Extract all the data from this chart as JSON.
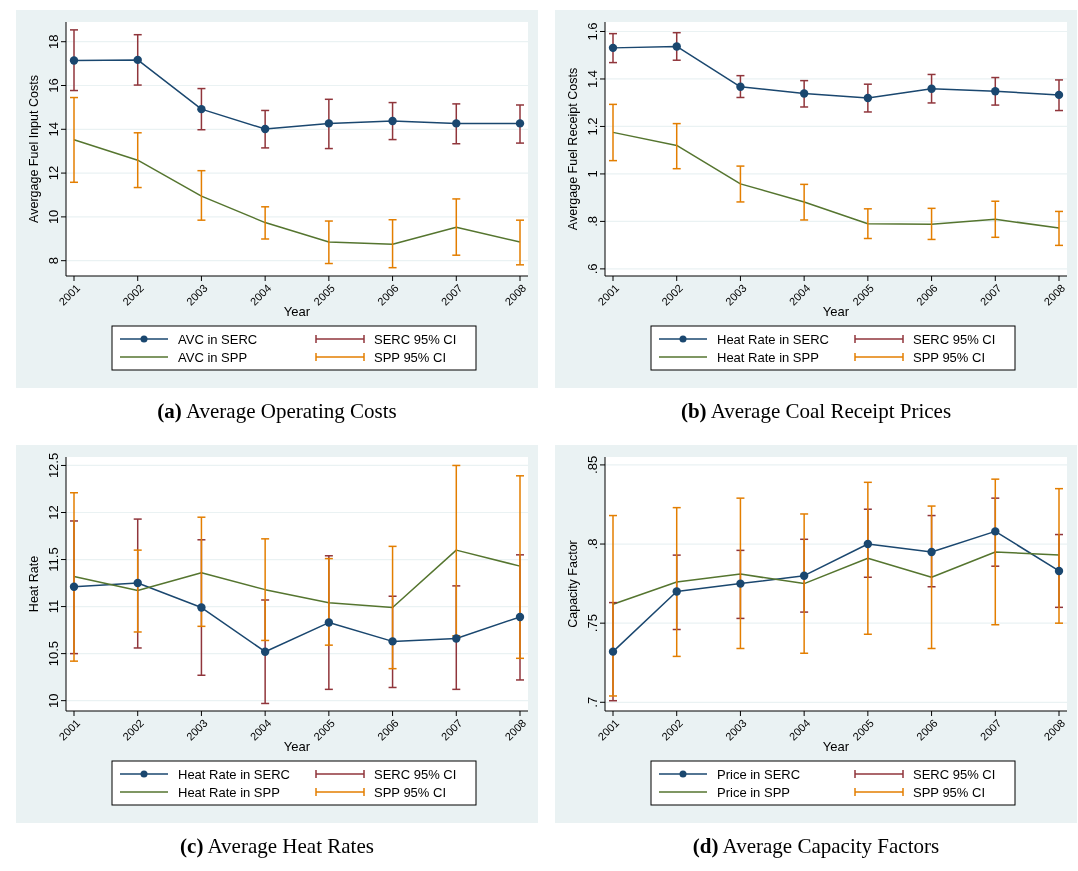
{
  "chart_data": [
    {
      "type": "line",
      "title": "(a) Average Operating Costs",
      "xlabel": "Year",
      "ylabel": "Avergage Fuel Input Costs",
      "categories": [
        "2001",
        "2002",
        "2003",
        "2004",
        "2005",
        "2006",
        "2007",
        "2008"
      ],
      "ylim": [
        7.3,
        18.9
      ],
      "yticks": [
        8,
        10,
        12,
        14,
        16,
        18
      ],
      "grid": "y",
      "legend": "bottom",
      "annotations": [
        "SERC 95% CI",
        "SPP 95% CI"
      ],
      "series": [
        {
          "name": "AVC in SERC",
          "color": "#1a476f",
          "marker": "circle",
          "values": [
            17.14,
            17.17,
            14.92,
            14.01,
            14.27,
            14.38,
            14.27,
            14.27
          ],
          "errors": [
            [
              15.77,
              18.54
            ],
            [
              16.02,
              18.32
            ],
            [
              13.98,
              15.86
            ],
            [
              13.15,
              14.86
            ],
            [
              13.12,
              15.37
            ],
            [
              13.53,
              15.22
            ],
            [
              13.34,
              15.16
            ],
            [
              13.37,
              15.11
            ]
          ]
        },
        {
          "name": "AVC in SPP",
          "color": "#55752f",
          "marker": "none",
          "values": [
            13.52,
            12.59,
            10.95,
            9.74,
            8.85,
            8.75,
            9.53,
            8.85
          ],
          "errors": [
            [
              11.58,
              15.45
            ],
            [
              11.34,
              13.84
            ],
            [
              9.85,
              12.11
            ],
            [
              8.99,
              10.46
            ],
            [
              7.87,
              9.81
            ],
            [
              7.68,
              9.87
            ],
            [
              8.25,
              10.82
            ],
            [
              7.81,
              9.85
            ]
          ]
        }
      ]
    },
    {
      "type": "line",
      "title": "(b) Average Coal Receipt Prices",
      "xlabel": "Year",
      "ylabel": "Avergage Fuel Receipt Costs",
      "categories": [
        "2001",
        "2002",
        "2003",
        "2004",
        "2005",
        "2006",
        "2007",
        "2008"
      ],
      "ylim": [
        0.57,
        1.64
      ],
      "yticks": [
        {
          "value": 0.6,
          "label": ".6"
        },
        {
          "value": 0.8,
          "label": ".8"
        },
        1,
        1.2,
        1.4,
        1.6
      ],
      "grid": "y",
      "legend": "bottom",
      "annotations": [
        "SERC 95% CI",
        "SPP 95% CI"
      ],
      "series": [
        {
          "name": "Heat Rate in SERC",
          "color": "#1a476f",
          "marker": "circle",
          "values": [
            1.531,
            1.537,
            1.367,
            1.339,
            1.32,
            1.359,
            1.348,
            1.333
          ],
          "errors": [
            [
              1.469,
              1.591
            ],
            [
              1.479,
              1.595
            ],
            [
              1.322,
              1.414
            ],
            [
              1.282,
              1.393
            ],
            [
              1.261,
              1.378
            ],
            [
              1.299,
              1.419
            ],
            [
              1.29,
              1.406
            ],
            [
              1.267,
              1.396
            ]
          ]
        },
        {
          "name": "Heat Rate in SPP",
          "color": "#55752f",
          "marker": "none",
          "values": [
            1.175,
            1.12,
            0.958,
            0.882,
            0.79,
            0.788,
            0.809,
            0.772
          ],
          "errors": [
            [
              1.056,
              1.293
            ],
            [
              1.022,
              1.212
            ],
            [
              0.882,
              1.033
            ],
            [
              0.806,
              0.956
            ],
            [
              0.728,
              0.853
            ],
            [
              0.724,
              0.855
            ],
            [
              0.733,
              0.885
            ],
            [
              0.699,
              0.842
            ]
          ]
        }
      ]
    },
    {
      "type": "line",
      "title": "(c) Average Heat Rates",
      "xlabel": "Year",
      "ylabel": "Heat Rate",
      "categories": [
        "2001",
        "2002",
        "2003",
        "2004",
        "2005",
        "2006",
        "2007",
        "2008"
      ],
      "ylim": [
        9.89,
        12.59
      ],
      "yticks": [
        10,
        10.5,
        11,
        11.5,
        12,
        12.5
      ],
      "grid": "y",
      "legend": "bottom",
      "annotations": [
        "SERC 95% CI",
        "SPP 95% CI"
      ],
      "series": [
        {
          "name": "Heat Rate in SERC",
          "color": "#1a476f",
          "marker": "circle",
          "values": [
            11.21,
            11.25,
            10.99,
            10.52,
            10.83,
            10.63,
            10.66,
            10.89
          ],
          "errors": [
            [
              10.5,
              11.91
            ],
            [
              10.56,
              11.93
            ],
            [
              10.27,
              11.71
            ],
            [
              9.97,
              11.07
            ],
            [
              10.12,
              11.54
            ],
            [
              10.14,
              11.11
            ],
            [
              10.12,
              11.22
            ],
            [
              10.22,
              11.55
            ]
          ]
        },
        {
          "name": "Heat Rate in SPP",
          "color": "#55752f",
          "marker": "none",
          "values": [
            11.32,
            11.17,
            11.36,
            11.18,
            11.04,
            10.99,
            11.6,
            11.43
          ],
          "errors": [
            [
              10.42,
              12.21
            ],
            [
              10.73,
              11.6
            ],
            [
              10.79,
              11.95
            ],
            [
              10.64,
              11.72
            ],
            [
              10.59,
              11.51
            ],
            [
              10.34,
              11.64
            ],
            [
              10.69,
              12.5
            ],
            [
              10.45,
              12.39
            ]
          ]
        }
      ]
    },
    {
      "type": "line",
      "title": "(d) Average Capacity Factors",
      "xlabel": "Year",
      "ylabel": "Capacity Factor",
      "categories": [
        "2001",
        "2002",
        "2003",
        "2004",
        "2005",
        "2006",
        "2007",
        "2008"
      ],
      "ylim": [
        0.6945,
        0.855
      ],
      "yticks": [
        {
          "value": 0.7,
          "label": ".7"
        },
        {
          "value": 0.75,
          "label": ".75"
        },
        {
          "value": 0.8,
          "label": ".8"
        },
        {
          "value": 0.85,
          "label": ".85"
        }
      ],
      "grid": "y",
      "legend": "bottom",
      "annotations": [
        "SERC 95% CI",
        "SPP 95% CI"
      ],
      "series": [
        {
          "name": "Price in SERC",
          "color": "#1a476f",
          "marker": "circle",
          "values": [
            0.732,
            0.77,
            0.775,
            0.78,
            0.8,
            0.795,
            0.808,
            0.783
          ],
          "errors": [
            [
              0.701,
              0.763
            ],
            [
              0.746,
              0.793
            ],
            [
              0.753,
              0.796
            ],
            [
              0.757,
              0.803
            ],
            [
              0.779,
              0.822
            ],
            [
              0.773,
              0.818
            ],
            [
              0.786,
              0.829
            ],
            [
              0.76,
              0.806
            ]
          ]
        },
        {
          "name": "Price in SPP",
          "color": "#55752f",
          "marker": "none",
          "values": [
            0.762,
            0.776,
            0.781,
            0.775,
            0.791,
            0.779,
            0.795,
            0.793
          ],
          "errors": [
            [
              0.704,
              0.818
            ],
            [
              0.729,
              0.823
            ],
            [
              0.734,
              0.829
            ],
            [
              0.731,
              0.819
            ],
            [
              0.743,
              0.839
            ],
            [
              0.734,
              0.824
            ],
            [
              0.749,
              0.841
            ],
            [
              0.75,
              0.835
            ]
          ]
        }
      ]
    }
  ]
}
